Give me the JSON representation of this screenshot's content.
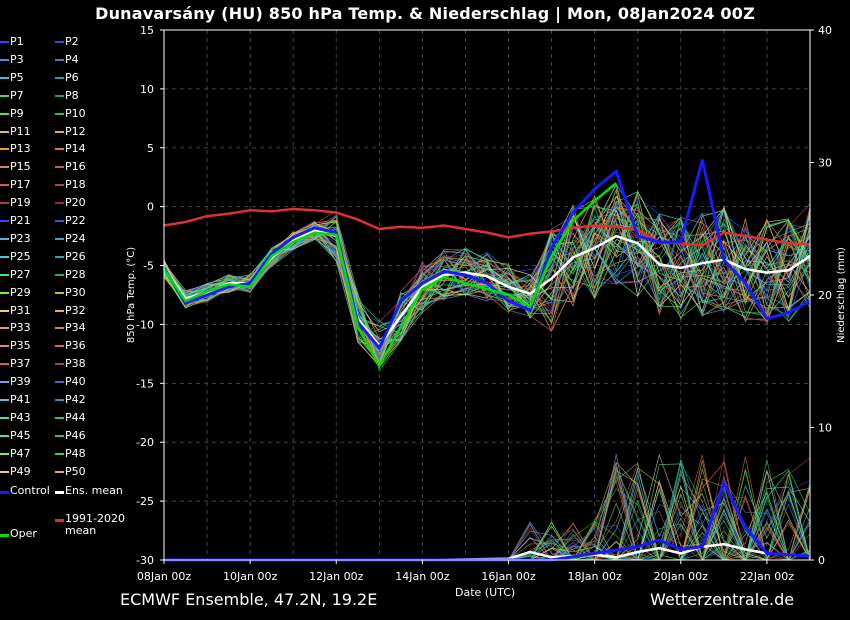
{
  "title": "Dunavarsány  (HU)  850 hPa Temp. & Niederschlag | Mon, 08Jan2024 00Z",
  "footer": {
    "model": "ECMWF Ensemble, 47.2N, 19.2E",
    "site": "Wetterzentrale.de"
  },
  "legend": {
    "members": [
      "P1",
      "P2",
      "P3",
      "P4",
      "P5",
      "P6",
      "P7",
      "P8",
      "P9",
      "P10",
      "P11",
      "P12",
      "P13",
      "P14",
      "P15",
      "P16",
      "P17",
      "P18",
      "P19",
      "P20",
      "P21",
      "P22",
      "P23",
      "P24",
      "P25",
      "P26",
      "P27",
      "P28",
      "P29",
      "P30",
      "P31",
      "P32",
      "P33",
      "P34",
      "P35",
      "P36",
      "P37",
      "P38",
      "P39",
      "P40",
      "P41",
      "P42",
      "P43",
      "P44",
      "P45",
      "P46",
      "P47",
      "P48",
      "P49",
      "P50"
    ],
    "member_colors": [
      "#3a3aff",
      "#3050d0",
      "#4a90e0",
      "#3a80c0",
      "#40c0d0",
      "#20a0a0",
      "#40d080",
      "#20a060",
      "#60e040",
      "#30c030",
      "#e0c060",
      "#e0b040",
      "#e0a040",
      "#d08030",
      "#e08050",
      "#d06030",
      "#d06050",
      "#c04030",
      "#a04040",
      "#903020",
      "#4040ff",
      "#3060e0",
      "#50b0e0",
      "#40a0c0",
      "#40d0d0",
      "#20b0a0",
      "#40e090",
      "#20b070",
      "#70f040",
      "#c0c040",
      "#e0d070",
      "#e0b050",
      "#e0a050",
      "#d09040",
      "#e09060",
      "#d07040",
      "#d06060",
      "#b04040",
      "#9090ff",
      "#3070d0",
      "#60c0e0",
      "#3090c0",
      "#40e0c0",
      "#30c090",
      "#50e0a0",
      "#30c070",
      "#80f050",
      "#40d040",
      "#e0d080",
      "#d0b060"
    ],
    "oper": "Oper",
    "ens_mean": "Ens. mean",
    "clim_mean": "1991-2020\nmean",
    "oper_color": "#00e000",
    "mean_color": "#ffffff",
    "clim_color": "#e03030",
    "hires_color": "#1a1aff"
  },
  "chart_data": {
    "type": "line",
    "xlabel": "Date (UTC)",
    "ylabel_left": "850 hPa Temp. (°C)",
    "ylabel_right": "Niederschlag (mm)",
    "ylim_left": [
      -30,
      15
    ],
    "yticks_left": [
      15,
      10,
      5,
      0,
      -5,
      -10,
      -15,
      -20,
      -25,
      -30
    ],
    "ylim_right": [
      0,
      40
    ],
    "yticks_right": [
      40,
      30,
      20,
      10,
      0
    ],
    "x_ticks": [
      "08Jan 00z",
      "10Jan 00z",
      "12Jan 00z",
      "14Jan 00z",
      "16Jan 00z",
      "18Jan 00z",
      "20Jan 00z",
      "22Jan 00z"
    ],
    "days_span": [
      0,
      15
    ],
    "grid": true,
    "clim_mean": [
      [
        0,
        -1.6
      ],
      [
        0.5,
        -1.3
      ],
      [
        1,
        -0.8
      ],
      [
        1.5,
        -0.6
      ],
      [
        2,
        -0.3
      ],
      [
        2.5,
        -0.4
      ],
      [
        3,
        -0.2
      ],
      [
        3.5,
        -0.3
      ],
      [
        4,
        -0.5
      ],
      [
        4.5,
        -1.1
      ],
      [
        5,
        -1.9
      ],
      [
        5.5,
        -1.7
      ],
      [
        6,
        -1.8
      ],
      [
        6.5,
        -1.6
      ],
      [
        7,
        -1.9
      ],
      [
        7.5,
        -2.2
      ],
      [
        8,
        -2.6
      ],
      [
        8.5,
        -2.3
      ],
      [
        9,
        -2.1
      ],
      [
        9.5,
        -1.8
      ],
      [
        10,
        -1.6
      ],
      [
        10.5,
        -1.7
      ],
      [
        11,
        -2.0
      ],
      [
        11.5,
        -3.0
      ],
      [
        12,
        -3.1
      ],
      [
        12.5,
        -3.3
      ],
      [
        13,
        -2.2
      ],
      [
        13.5,
        -2.5
      ],
      [
        14,
        -2.8
      ],
      [
        14.5,
        -3.1
      ],
      [
        15,
        -3.2
      ]
    ],
    "ens_mean": [
      [
        0,
        -5.2
      ],
      [
        0.5,
        -7.8
      ],
      [
        1,
        -7.3
      ],
      [
        1.5,
        -6.5
      ],
      [
        2,
        -6.5
      ],
      [
        2.5,
        -4.3
      ],
      [
        3,
        -2.9
      ],
      [
        3.5,
        -2.0
      ],
      [
        4,
        -2.5
      ],
      [
        4.5,
        -9.5
      ],
      [
        5,
        -11.8
      ],
      [
        5.5,
        -9.3
      ],
      [
        6,
        -6.8
      ],
      [
        6.5,
        -5.8
      ],
      [
        7,
        -5.6
      ],
      [
        7.5,
        -5.9
      ],
      [
        8,
        -6.8
      ],
      [
        8.5,
        -7.4
      ],
      [
        9,
        -6.1
      ],
      [
        9.5,
        -4.3
      ],
      [
        10,
        -3.5
      ],
      [
        10.5,
        -2.5
      ],
      [
        11,
        -3.1
      ],
      [
        11.5,
        -4.9
      ],
      [
        12,
        -5.2
      ],
      [
        12.5,
        -4.8
      ],
      [
        13,
        -4.5
      ],
      [
        13.5,
        -5.3
      ],
      [
        14,
        -5.6
      ],
      [
        14.5,
        -5.4
      ],
      [
        15,
        -4.2
      ]
    ],
    "hires": [
      [
        0,
        -5.2
      ],
      [
        0.5,
        -8.2
      ],
      [
        1,
        -7.5
      ],
      [
        1.5,
        -6.8
      ],
      [
        2,
        -6.5
      ],
      [
        2.5,
        -4.0
      ],
      [
        3,
        -2.6
      ],
      [
        3.5,
        -1.8
      ],
      [
        4,
        -2.2
      ],
      [
        4.5,
        -9.8
      ],
      [
        5,
        -12.0
      ],
      [
        5.5,
        -8.0
      ],
      [
        6,
        -6.5
      ],
      [
        6.5,
        -5.5
      ],
      [
        7,
        -5.8
      ],
      [
        7.5,
        -6.5
      ],
      [
        8,
        -8.0
      ],
      [
        8.5,
        -8.8
      ],
      [
        9,
        -3.5
      ],
      [
        9.5,
        -0.5
      ],
      [
        10,
        1.5
      ],
      [
        10.5,
        3.0
      ],
      [
        11,
        -2.5
      ],
      [
        11.5,
        -3.0
      ],
      [
        12,
        -3.0
      ],
      [
        12.5,
        4.0
      ],
      [
        13,
        -4.5
      ],
      [
        13.5,
        -6.5
      ],
      [
        14,
        -9.5
      ],
      [
        14.5,
        -9.0
      ],
      [
        15,
        -8.0
      ]
    ],
    "oper": [
      [
        0,
        -5.3
      ],
      [
        0.5,
        -8.0
      ],
      [
        1,
        -7.2
      ],
      [
        1.5,
        -6.6
      ],
      [
        2,
        -6.8
      ],
      [
        2.5,
        -4.2
      ],
      [
        3,
        -3.0
      ],
      [
        3.5,
        -2.2
      ],
      [
        4,
        -2.4
      ],
      [
        4.5,
        -10.2
      ],
      [
        5,
        -13.5
      ],
      [
        5.5,
        -10.2
      ],
      [
        6,
        -7.0
      ],
      [
        6.5,
        -6.0
      ],
      [
        7,
        -6.5
      ],
      [
        7.5,
        -7.0
      ],
      [
        8,
        -7.5
      ],
      [
        8.5,
        -8.5
      ],
      [
        9,
        -4.2
      ],
      [
        9.5,
        -1.2
      ],
      [
        10,
        0.5
      ],
      [
        10.5,
        2.0
      ]
    ],
    "ens_mean_precip": [
      [
        0,
        0
      ],
      [
        2,
        0
      ],
      [
        4,
        0
      ],
      [
        6,
        0
      ],
      [
        8,
        0.1
      ],
      [
        8.5,
        0.6
      ],
      [
        9,
        0.2
      ],
      [
        10,
        0.4
      ],
      [
        10.5,
        0.2
      ],
      [
        11,
        0.6
      ],
      [
        11.5,
        0.9
      ],
      [
        12,
        0.5
      ],
      [
        12.5,
        1.0
      ],
      [
        13,
        1.2
      ],
      [
        13.5,
        0.8
      ],
      [
        14,
        0.5
      ],
      [
        15,
        0.3
      ]
    ],
    "hires_precip": [
      [
        0,
        0
      ],
      [
        9,
        0
      ],
      [
        10,
        0.5
      ],
      [
        11,
        1.0
      ],
      [
        11.5,
        1.5
      ],
      [
        12,
        0.8
      ],
      [
        12.5,
        1.0
      ],
      [
        13,
        5.8
      ],
      [
        13.5,
        2.5
      ],
      [
        14,
        0.5
      ],
      [
        15,
        0.3
      ]
    ]
  }
}
